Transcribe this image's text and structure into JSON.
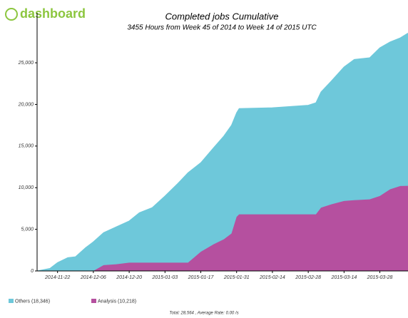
{
  "logo": "dashboard",
  "chart_data": {
    "type": "stacked-area",
    "title": "Completed jobs Cumulative",
    "subtitle": "3455 Hours from Week 45 of 2014 to Week 14 of 2015 UTC",
    "footer": "Total: 28,564 , Average Rate: 0.00 /s",
    "x": [
      "2014-11-14",
      "2014-11-19",
      "2014-11-22",
      "2014-11-26",
      "2014-11-29",
      "2014-12-03",
      "2014-12-06",
      "2014-12-10",
      "2014-12-15",
      "2014-12-20",
      "2014-12-24",
      "2014-12-29",
      "2015-01-03",
      "2015-01-08",
      "2015-01-12",
      "2015-01-17",
      "2015-01-22",
      "2015-01-26",
      "2015-01-29",
      "2015-01-31",
      "2015-02-01",
      "2015-02-14",
      "2015-02-28",
      "2015-03-03",
      "2015-03-05",
      "2015-03-09",
      "2015-03-14",
      "2015-03-18",
      "2015-03-24",
      "2015-03-28",
      "2015-04-01",
      "2015-04-05",
      "2015-04-08"
    ],
    "series": [
      {
        "name": "Analysis (10,218)",
        "color": "#b5509f",
        "values": [
          0,
          0,
          0,
          0,
          0,
          0,
          0,
          700,
          800,
          1000,
          1000,
          1000,
          1000,
          1000,
          1000,
          2300,
          3200,
          3800,
          4500,
          6500,
          6800,
          6800,
          6800,
          6800,
          7600,
          8000,
          8400,
          8500,
          8600,
          9000,
          9800,
          10200,
          10218
        ]
      },
      {
        "name": "Others (18,346)",
        "color": "#6ec8da",
        "values": [
          0,
          300,
          1000,
          1600,
          1700,
          2800,
          3500,
          3900,
          4500,
          5000,
          6000,
          6600,
          8000,
          9500,
          10800,
          10700,
          11600,
          12400,
          13000,
          12500,
          12700,
          12800,
          13100,
          13400,
          13900,
          14800,
          16100,
          16900,
          17000,
          17800,
          17700,
          17800,
          18346
        ]
      }
    ],
    "xlim": [
      "2014-11-14",
      "2015-04-08"
    ],
    "xticks": [
      "2014-11-22",
      "2014-12-06",
      "2014-12-20",
      "2015-01-03",
      "2015-01-17",
      "2015-01-31",
      "2015-02-14",
      "2015-02-28",
      "2015-03-14",
      "2015-03-28"
    ],
    "ylim": [
      0,
      31000
    ],
    "yticks": [
      0,
      {
        "value": 5000,
        "label": "5,000"
      },
      {
        "value": 10000,
        "label": "10,000"
      },
      {
        "value": 15000,
        "label": "15,000"
      },
      {
        "value": 20000,
        "label": "20,000"
      },
      {
        "value": 25000,
        "label": "25,000"
      }
    ],
    "grid": false
  }
}
